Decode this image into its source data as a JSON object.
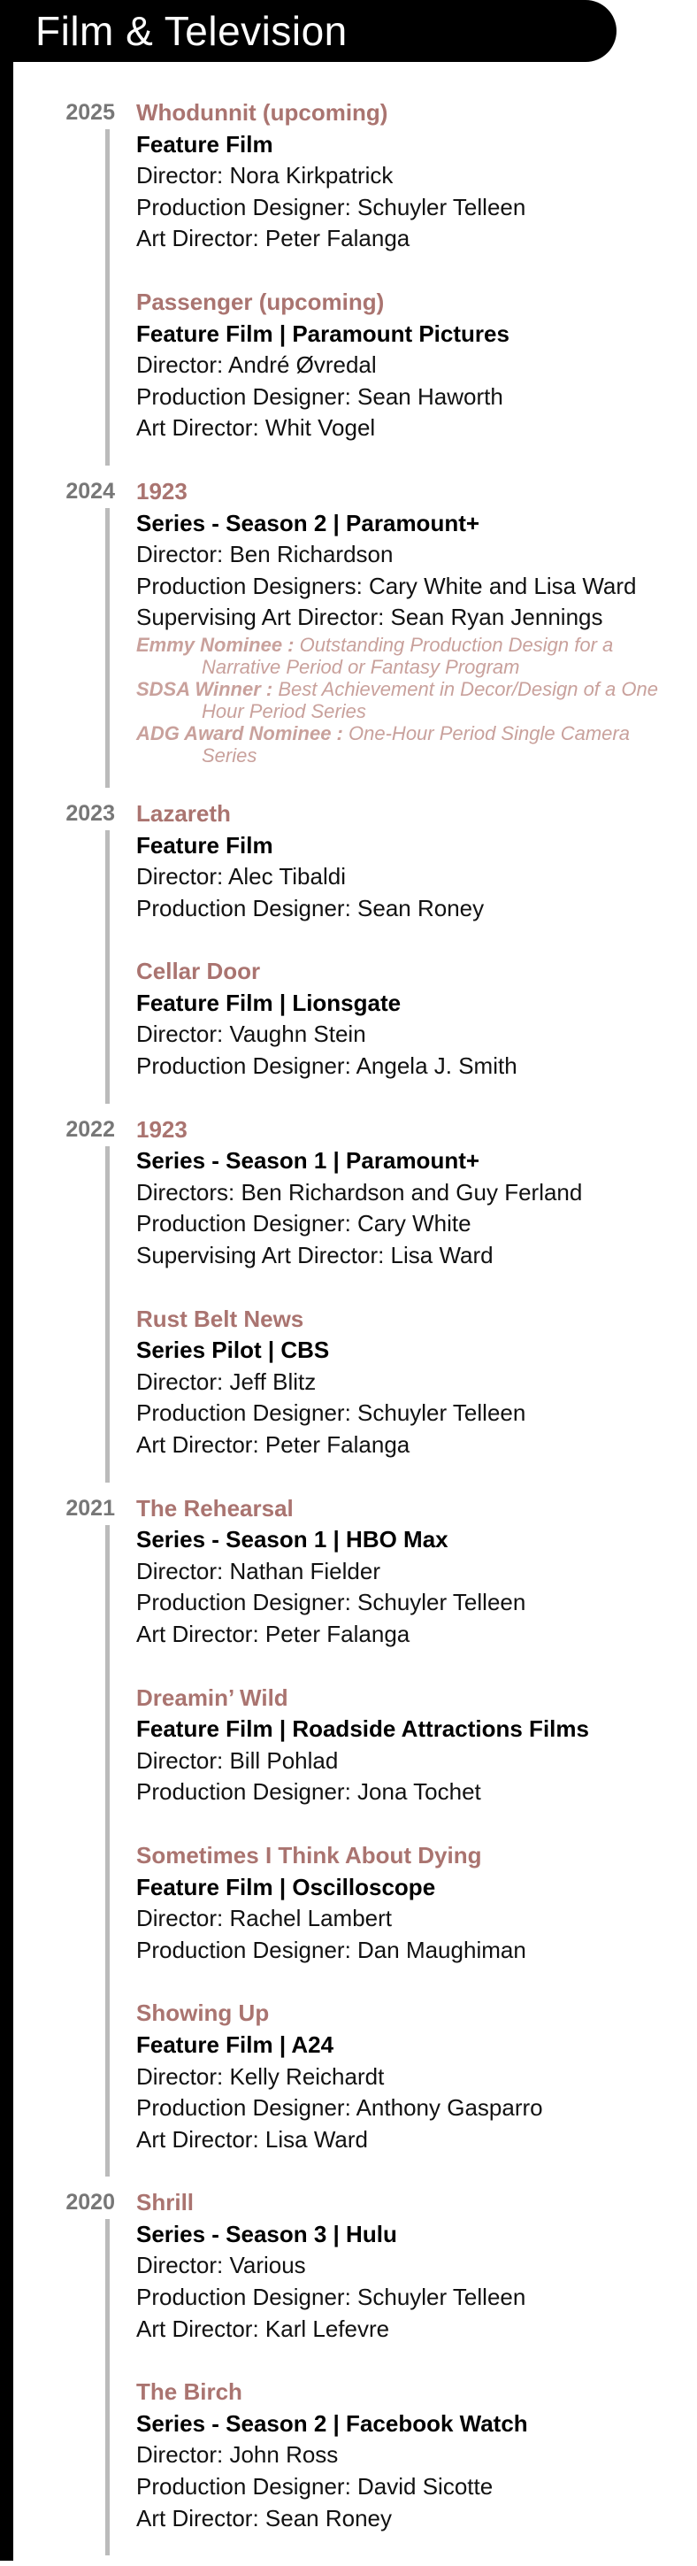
{
  "header": {
    "title": "Film & Television"
  },
  "years": [
    {
      "year": "2025",
      "projects": [
        {
          "title": "Whodunnit (upcoming)",
          "subtitle": "Feature Film",
          "credits": [
            "Director: Nora Kirkpatrick",
            "Production Designer: Schuyler Telleen",
            "Art Director: Peter Falanga"
          ],
          "awards": []
        },
        {
          "title": "Passenger (upcoming)",
          "subtitle": "Feature Film | Paramount Pictures",
          "credits": [
            "Director: André Øvredal",
            "Production Designer: Sean Haworth",
            "Art Director: Whit Vogel"
          ],
          "awards": []
        }
      ]
    },
    {
      "year": "2024",
      "projects": [
        {
          "title": "1923",
          "subtitle": "Series - Season 2 | Paramount+",
          "credits": [
            "Director: Ben Richardson",
            "Production Designers: Cary White and Lisa Ward",
            "Supervising Art Director: Sean Ryan Jennings"
          ],
          "awards": [
            {
              "label": "Emmy Nominee :",
              "text": "Outstanding Production Design for a Narrative Period or Fantasy Program"
            },
            {
              "label": "SDSA Winner :",
              "text": "Best Achievement in Decor/Design of a One Hour Period Series"
            },
            {
              "label": "ADG Award Nominee :",
              "text": "One-Hour Period Single Camera Series"
            }
          ]
        }
      ]
    },
    {
      "year": "2023",
      "projects": [
        {
          "title": "Lazareth",
          "subtitle": "Feature Film",
          "credits": [
            "Director: Alec Tibaldi",
            "Production Designer: Sean Roney"
          ],
          "awards": []
        },
        {
          "title": "Cellar Door",
          "subtitle": "Feature Film | Lionsgate",
          "credits": [
            "Director: Vaughn Stein",
            "Production Designer: Angela J. Smith"
          ],
          "awards": []
        }
      ]
    },
    {
      "year": "2022",
      "projects": [
        {
          "title": "1923",
          "subtitle": "Series - Season 1 | Paramount+",
          "credits": [
            "Directors: Ben Richardson and Guy Ferland",
            "Production Designer: Cary White",
            "Supervising Art Director: Lisa Ward"
          ],
          "awards": []
        },
        {
          "title": "Rust Belt News",
          "subtitle": "Series Pilot | CBS",
          "credits": [
            "Director: Jeff Blitz",
            "Production Designer: Schuyler Telleen",
            "Art Director: Peter Falanga"
          ],
          "awards": []
        }
      ]
    },
    {
      "year": "2021",
      "projects": [
        {
          "title": "The Rehearsal",
          "subtitle": "Series - Season 1 | HBO Max",
          "credits": [
            "Director: Nathan Fielder",
            "Production Designer: Schuyler Telleen",
            "Art Director: Peter Falanga"
          ],
          "awards": []
        },
        {
          "title": "Dreamin’ Wild",
          "subtitle": "Feature Film | Roadside Attractions Films",
          "credits": [
            "Director: Bill Pohlad",
            "Production Designer: Jona Tochet"
          ],
          "awards": []
        },
        {
          "title": "Sometimes I Think About Dying",
          "subtitle": "Feature Film | Oscilloscope",
          "credits": [
            "Director: Rachel Lambert",
            "Production Designer: Dan Maughiman"
          ],
          "awards": []
        },
        {
          "title": "Showing Up",
          "subtitle": "Feature Film | A24",
          "credits": [
            "Director: Kelly Reichardt",
            "Production Designer: Anthony Gasparro",
            "Art Director: Lisa Ward"
          ],
          "awards": []
        }
      ]
    },
    {
      "year": "2020",
      "projects": [
        {
          "title": "Shrill",
          "subtitle": "Series - Season 3 | Hulu",
          "credits": [
            "Director: Various",
            "Production Designer: Schuyler Telleen",
            "Art Director: Karl Lefevre"
          ],
          "awards": []
        },
        {
          "title": "The Birch",
          "subtitle": "Series - Season 2 | Facebook Watch",
          "credits": [
            "Director: John Ross",
            "Production Designer: David Sicotte",
            "Art Director: Sean Roney"
          ],
          "awards": []
        }
      ]
    }
  ]
}
